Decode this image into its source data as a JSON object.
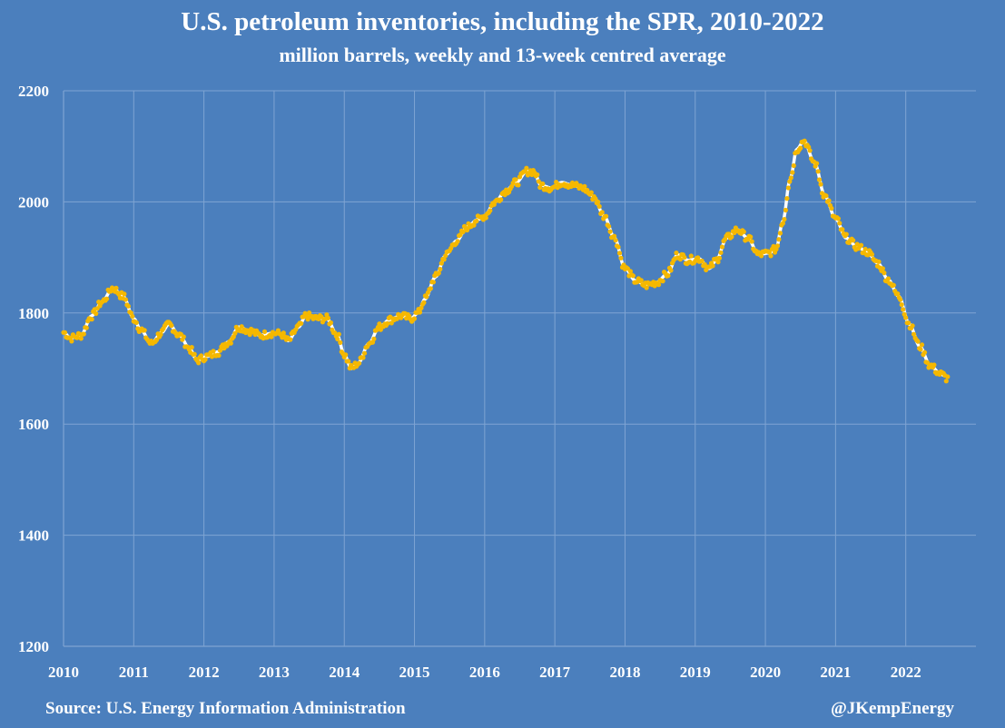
{
  "title": "U.S. petroleum inventories, including the SPR, 2010-2022",
  "subtitle": "million barrels, weekly and 13-week centred average",
  "source": "Source: U.S. Energy Information Administration",
  "credit": "@JKempEnergy",
  "colors": {
    "background": "#4b7fbd",
    "points": "#f5b800",
    "average": "#ffffff",
    "grid": "#7fa4d3"
  },
  "chart_data": {
    "type": "scatter",
    "title": "U.S. petroleum inventories, including the SPR, 2010-2022",
    "subtitle": "million barrels, weekly and 13-week centred average",
    "xlabel": "",
    "ylabel": "",
    "xlim": [
      2010,
      2023.0
    ],
    "ylim": [
      1200,
      2200
    ],
    "grid": true,
    "x_ticks": [
      "2010",
      "2011",
      "2012",
      "2013",
      "2014",
      "2015",
      "2016",
      "2017",
      "2018",
      "2019",
      "2020",
      "2021",
      "2022"
    ],
    "y_ticks": [
      "1200",
      "1400",
      "1600",
      "1800",
      "2000",
      "2200"
    ],
    "series": [
      {
        "name": "weekly (points) and 13-week centred average (line)",
        "anchors": [
          [
            2010.0,
            1765
          ],
          [
            2010.1,
            1755
          ],
          [
            2010.25,
            1760
          ],
          [
            2010.4,
            1795
          ],
          [
            2010.55,
            1820
          ],
          [
            2010.7,
            1845
          ],
          [
            2010.85,
            1830
          ],
          [
            2011.0,
            1790
          ],
          [
            2011.1,
            1770
          ],
          [
            2011.25,
            1745
          ],
          [
            2011.4,
            1765
          ],
          [
            2011.5,
            1780
          ],
          [
            2011.65,
            1760
          ],
          [
            2011.8,
            1735
          ],
          [
            2011.9,
            1715
          ],
          [
            2012.05,
            1722
          ],
          [
            2012.2,
            1730
          ],
          [
            2012.35,
            1748
          ],
          [
            2012.5,
            1775
          ],
          [
            2012.65,
            1768
          ],
          [
            2012.8,
            1760
          ],
          [
            2013.0,
            1764
          ],
          [
            2013.1,
            1762
          ],
          [
            2013.2,
            1750
          ],
          [
            2013.35,
            1775
          ],
          [
            2013.45,
            1795
          ],
          [
            2013.6,
            1790
          ],
          [
            2013.75,
            1790
          ],
          [
            2013.9,
            1760
          ],
          [
            2014.0,
            1725
          ],
          [
            2014.1,
            1700
          ],
          [
            2014.2,
            1710
          ],
          [
            2014.35,
            1745
          ],
          [
            2014.5,
            1775
          ],
          [
            2014.65,
            1788
          ],
          [
            2014.8,
            1795
          ],
          [
            2014.95,
            1790
          ],
          [
            2015.05,
            1800
          ],
          [
            2015.15,
            1825
          ],
          [
            2015.3,
            1865
          ],
          [
            2015.45,
            1905
          ],
          [
            2015.6,
            1930
          ],
          [
            2015.75,
            1955
          ],
          [
            2015.9,
            1968
          ],
          [
            2016.0,
            1975
          ],
          [
            2016.15,
            2000
          ],
          [
            2016.3,
            2020
          ],
          [
            2016.45,
            2035
          ],
          [
            2016.6,
            2055
          ],
          [
            2016.7,
            2055
          ],
          [
            2016.8,
            2030
          ],
          [
            2016.95,
            2025
          ],
          [
            2017.1,
            2035
          ],
          [
            2017.25,
            2030
          ],
          [
            2017.4,
            2025
          ],
          [
            2017.55,
            2010
          ],
          [
            2017.7,
            1975
          ],
          [
            2017.85,
            1935
          ],
          [
            2018.0,
            1880
          ],
          [
            2018.15,
            1858
          ],
          [
            2018.3,
            1850
          ],
          [
            2018.45,
            1855
          ],
          [
            2018.6,
            1870
          ],
          [
            2018.75,
            1905
          ],
          [
            2018.9,
            1895
          ],
          [
            2019.05,
            1898
          ],
          [
            2019.2,
            1880
          ],
          [
            2019.3,
            1895
          ],
          [
            2019.45,
            1935
          ],
          [
            2019.6,
            1950
          ],
          [
            2019.75,
            1935
          ],
          [
            2019.9,
            1905
          ],
          [
            2020.05,
            1908
          ],
          [
            2020.15,
            1915
          ],
          [
            2020.25,
            1965
          ],
          [
            2020.35,
            2040
          ],
          [
            2020.45,
            2095
          ],
          [
            2020.55,
            2110
          ],
          [
            2020.7,
            2070
          ],
          [
            2020.85,
            2010
          ],
          [
            2021.0,
            1970
          ],
          [
            2021.15,
            1935
          ],
          [
            2021.3,
            1920
          ],
          [
            2021.45,
            1910
          ],
          [
            2021.6,
            1890
          ],
          [
            2021.75,
            1860
          ],
          [
            2021.9,
            1830
          ],
          [
            2022.05,
            1780
          ],
          [
            2022.2,
            1740
          ],
          [
            2022.35,
            1705
          ],
          [
            2022.5,
            1690
          ],
          [
            2022.6,
            1682
          ]
        ]
      }
    ]
  }
}
